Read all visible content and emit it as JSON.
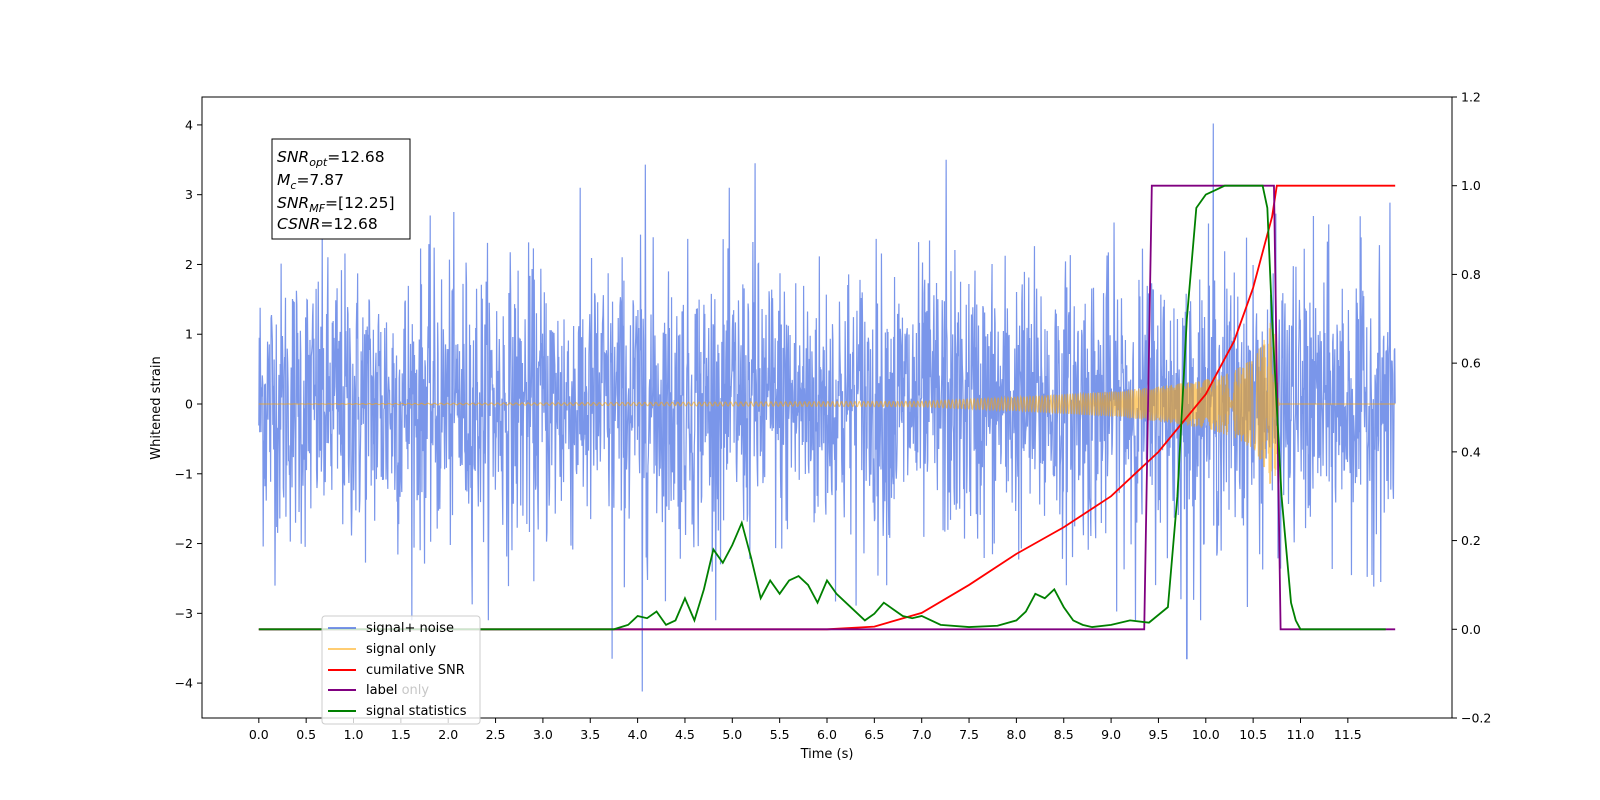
{
  "chart_data": {
    "type": "line",
    "title": "",
    "xlabel": "Time (s)",
    "ylabel": "Whitened strain",
    "xlim": [
      -0.6,
      12.6
    ],
    "ylim": [
      -4.5,
      4.4
    ],
    "y2lim": [
      -0.2,
      1.2
    ],
    "xticks": [
      "0.0",
      "0.5",
      "1.0",
      "1.5",
      "2.0",
      "2.5",
      "3.0",
      "3.5",
      "4.0",
      "4.5",
      "5.0",
      "5.5",
      "6.0",
      "6.5",
      "7.0",
      "7.5",
      "8.0",
      "8.5",
      "9.0",
      "9.5",
      "10.0",
      "10.5",
      "11.0",
      "11.5"
    ],
    "yticks": [
      "4",
      "3",
      "2",
      "1",
      "0",
      "−1",
      "−2",
      "−3",
      "−4"
    ],
    "y2ticks": [
      "1.2",
      "1.0",
      "0.8",
      "0.6",
      "0.4",
      "0.2",
      "0.0",
      "−0.2"
    ],
    "grid": false,
    "legend_position": "bottom-left",
    "annotation": {
      "lines": [
        {
          "var": "SNR",
          "sub": "opt",
          "value": "=12.68"
        },
        {
          "var": "M",
          "sub": "c",
          "value": "=7.87"
        },
        {
          "var": "SNR",
          "sub": "MF",
          "value": "=[12.25]"
        },
        {
          "var": "CSNR",
          "sub": "",
          "value": "=12.68"
        }
      ]
    },
    "series": [
      {
        "name": "signal+ noise",
        "axis": "left",
        "color": "#4169e1",
        "kind": "noise",
        "x_range": [
          0.0,
          12.0
        ],
        "amplitude_typical": 1.6,
        "peak_values": [
          {
            "x": 10.08,
            "y": 4.02
          },
          {
            "x": 4.05,
            "y": -4.12
          },
          {
            "x": 9.8,
            "y": -3.65
          },
          {
            "x": 3.73,
            "y": -3.65
          },
          {
            "x": 4.08,
            "y": 3.43
          },
          {
            "x": 5.24,
            "y": 3.45
          },
          {
            "x": 7.26,
            "y": 3.5
          }
        ]
      },
      {
        "name": "signal only",
        "axis": "left",
        "color": "#ffa500",
        "kind": "chirp",
        "envelope": {
          "x": [
            0.0,
            7.0,
            8.0,
            9.0,
            9.5,
            10.0,
            10.3,
            10.5,
            10.65,
            10.72,
            10.78,
            12.0
          ],
          "y": [
            0.0,
            0.04,
            0.1,
            0.18,
            0.25,
            0.35,
            0.48,
            0.65,
            1.0,
            1.4,
            0.0,
            0.0
          ]
        }
      },
      {
        "name": "cumilative SNR",
        "axis": "right",
        "color": "#ff0000",
        "x": [
          0.0,
          5.0,
          6.0,
          6.5,
          7.0,
          7.5,
          8.0,
          8.5,
          9.0,
          9.5,
          10.0,
          10.3,
          10.5,
          10.6,
          10.65,
          10.7,
          10.75,
          12.0
        ],
        "y": [
          0.0,
          0.0,
          0.0,
          0.006,
          0.037,
          0.1,
          0.17,
          0.23,
          0.3,
          0.4,
          0.53,
          0.65,
          0.77,
          0.85,
          0.89,
          0.93,
          1.0,
          1.0
        ]
      },
      {
        "name": "label",
        "axis": "right",
        "color": "#800080",
        "x": [
          0.0,
          9.35,
          9.43,
          10.72,
          10.79,
          12.0
        ],
        "y": [
          0.0,
          0.0,
          1.0,
          1.0,
          0.0,
          0.0
        ]
      },
      {
        "name": "label only",
        "axis": "right",
        "color": "#ffffff",
        "x": [],
        "y": []
      },
      {
        "name": "signal statistics",
        "axis": "right",
        "color": "#008000",
        "x": [
          0.0,
          3.5,
          3.75,
          3.9,
          4.0,
          4.1,
          4.2,
          4.3,
          4.4,
          4.5,
          4.6,
          4.7,
          4.8,
          4.9,
          5.0,
          5.1,
          5.2,
          5.3,
          5.4,
          5.5,
          5.6,
          5.7,
          5.8,
          5.9,
          6.0,
          6.1,
          6.2,
          6.3,
          6.4,
          6.5,
          6.6,
          6.7,
          6.8,
          6.9,
          7.0,
          7.2,
          7.5,
          7.8,
          8.0,
          8.1,
          8.2,
          8.3,
          8.4,
          8.5,
          8.6,
          8.7,
          8.8,
          9.0,
          9.2,
          9.4,
          9.6,
          9.7,
          9.8,
          9.9,
          10.0,
          10.1,
          10.2,
          10.3,
          10.5,
          10.6,
          10.65,
          10.7,
          10.8,
          10.9,
          10.95,
          11.0,
          11.2,
          11.9
        ],
        "y": [
          0.0,
          0.0,
          0.0,
          0.01,
          0.03,
          0.025,
          0.04,
          0.01,
          0.02,
          0.07,
          0.02,
          0.09,
          0.18,
          0.15,
          0.19,
          0.24,
          0.16,
          0.07,
          0.11,
          0.08,
          0.11,
          0.12,
          0.1,
          0.06,
          0.11,
          0.08,
          0.06,
          0.04,
          0.02,
          0.035,
          0.06,
          0.045,
          0.03,
          0.025,
          0.03,
          0.01,
          0.005,
          0.008,
          0.02,
          0.04,
          0.08,
          0.07,
          0.09,
          0.05,
          0.02,
          0.01,
          0.005,
          0.01,
          0.02,
          0.015,
          0.05,
          0.3,
          0.7,
          0.95,
          0.98,
          0.99,
          1.0,
          1.0,
          1.0,
          1.0,
          0.95,
          0.7,
          0.3,
          0.06,
          0.02,
          0.0,
          0.0,
          0.0
        ]
      }
    ]
  }
}
